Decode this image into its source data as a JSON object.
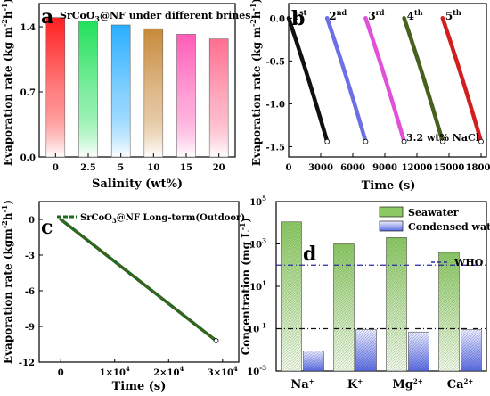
{
  "chart_data": [
    {
      "panel": "a",
      "type": "bar",
      "title": "SrCoO3@NF under different brines",
      "xlabel": "Salinity (wt%)",
      "ylabel": "Evaporation rate (kg m-2h-1)",
      "categories": [
        "0",
        "2.5",
        "5",
        "10",
        "15",
        "20"
      ],
      "values": [
        1.5,
        1.46,
        1.42,
        1.38,
        1.32,
        1.27
      ],
      "colors": [
        "#ff1f1f",
        "#22e05a",
        "#2aaeff",
        "#c88a3a",
        "#ff5cb8",
        "#ff6e90"
      ],
      "ylim": [
        0,
        1.65
      ],
      "yticks": [
        "0.0",
        "0.7",
        "1.4"
      ]
    },
    {
      "panel": "b",
      "type": "line",
      "xlabel": "Time (s)",
      "ylabel": "Evaporation rate (kg m-2h-1)",
      "annotation": "3.2 wt% NaCl",
      "xlim": [
        0,
        18500
      ],
      "ylim": [
        -1.62,
        0.17
      ],
      "xticks": [
        "0",
        "3000",
        "6000",
        "9000",
        "12000",
        "15000",
        "18000"
      ],
      "yticks": [
        "0.0",
        "-0.5",
        "-1.0",
        "-1.5"
      ],
      "series": [
        {
          "name": "1st",
          "color": "#111111",
          "x": [
            0,
            3600
          ],
          "y": [
            0,
            -1.44
          ]
        },
        {
          "name": "2nd",
          "color": "#6e6ee6",
          "x": [
            3600,
            7200
          ],
          "y": [
            0,
            -1.44
          ]
        },
        {
          "name": "3rd",
          "color": "#e050d8",
          "x": [
            7200,
            10800
          ],
          "y": [
            0,
            -1.44
          ]
        },
        {
          "name": "4th",
          "color": "#46601e",
          "x": [
            10800,
            14400
          ],
          "y": [
            0,
            -1.44
          ]
        },
        {
          "name": "5th",
          "color": "#d21e1e",
          "x": [
            14400,
            18000
          ],
          "y": [
            0,
            -1.44
          ]
        }
      ]
    },
    {
      "panel": "c",
      "type": "line",
      "xlabel": "Time (s)",
      "ylabel": "Evaporation rate (kgm-2h-1)",
      "xlim": [
        -4000,
        33000
      ],
      "ylim": [
        -12,
        1.5
      ],
      "xticks": [
        "0",
        "1×104",
        "2×104",
        "3×104"
      ],
      "yticks": [
        "0",
        "-3",
        "-6",
        "-9",
        "-12"
      ],
      "series": [
        {
          "name": "SrCoO3@NF Long-term(Outdoor)",
          "color": "#1e6a1e",
          "x": [
            0,
            28800
          ],
          "y": [
            0,
            -10.2
          ]
        }
      ]
    },
    {
      "panel": "d",
      "type": "bar",
      "ylabel": "Concentration (mg L-1)",
      "yscale": "log",
      "ylim": [
        0.001,
        100000
      ],
      "yticks": [
        "10-3",
        "10-1",
        "101",
        "103",
        "105"
      ],
      "categories": [
        "Na+",
        "K+",
        "Mg2+",
        "Ca2+"
      ],
      "series": [
        {
          "name": "Seawater",
          "color": "#8cc864",
          "values": [
            11000,
            1000,
            2000,
            400
          ]
        },
        {
          "name": "Condensed water",
          "color": "#5a6ce0",
          "values": [
            0.009,
            0.09,
            0.07,
            0.09
          ]
        }
      ],
      "who_limits": [
        {
          "name": "WHO",
          "value": 100
        },
        {
          "value": 0.1
        }
      ]
    }
  ]
}
